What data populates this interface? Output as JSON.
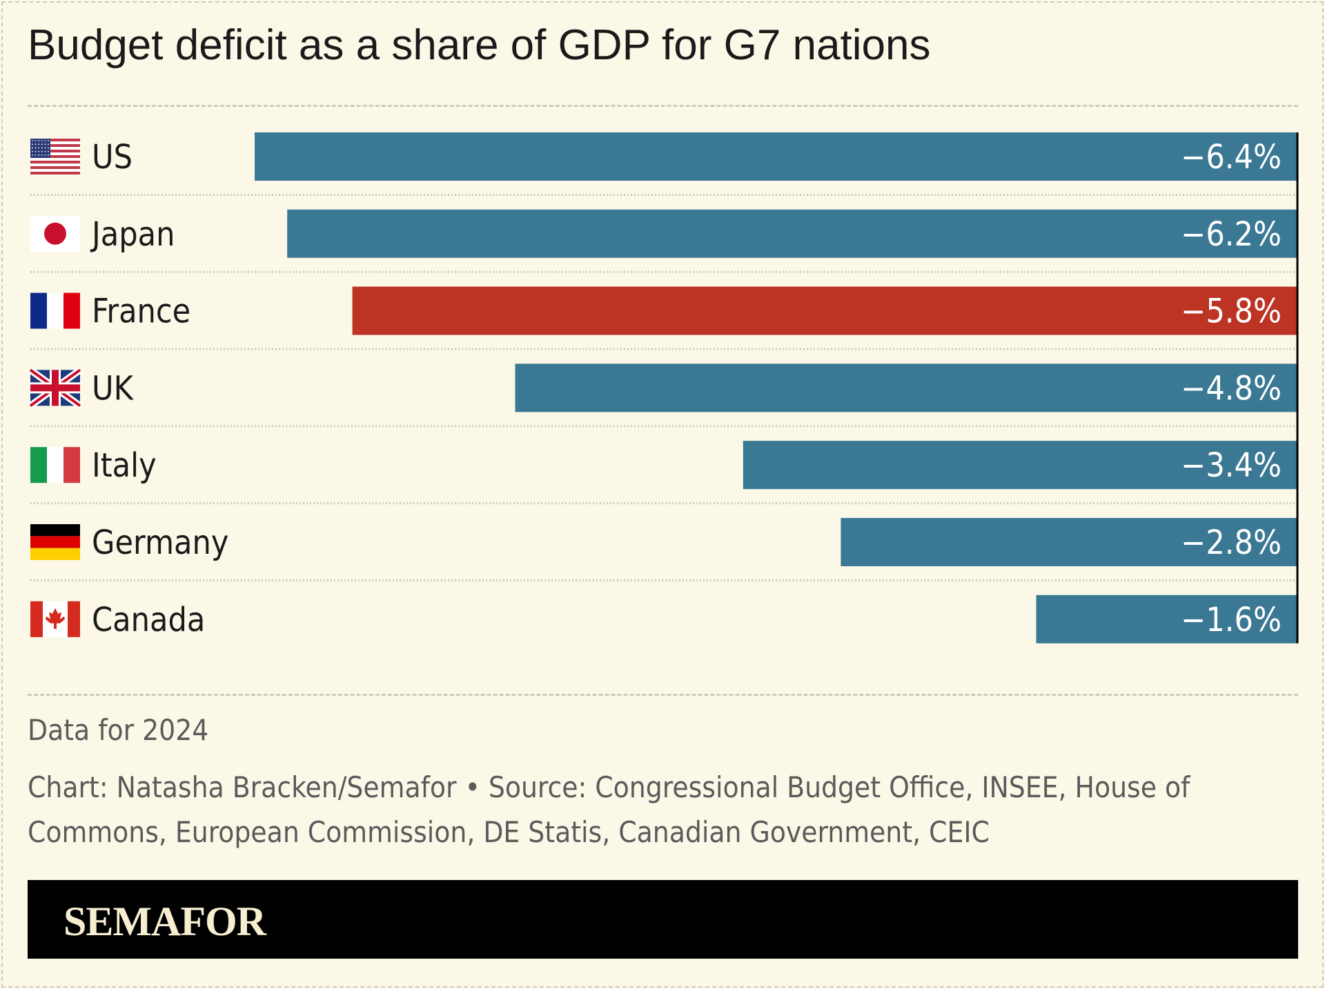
{
  "chart_data": {
    "type": "bar",
    "orientation": "horizontal",
    "title": "Budget deficit as a share of GDP for G7 nations",
    "categories": [
      "US",
      "Japan",
      "France",
      "UK",
      "Italy",
      "Germany",
      "Canada"
    ],
    "values": [
      -6.4,
      -6.2,
      -5.8,
      -4.8,
      -3.4,
      -2.8,
      -1.6
    ],
    "data_labels": [
      "−6.4%",
      "−6.2%",
      "−5.8%",
      "−4.8%",
      "−3.4%",
      "−2.8%",
      "−1.6%"
    ],
    "flags": [
      "us-flag",
      "japan-flag",
      "france-flag",
      "uk-flag",
      "italy-flag",
      "germany-flag",
      "canada-flag"
    ],
    "highlight": "France",
    "colors": {
      "default": "#3a7893",
      "highlight": "#bd3324"
    },
    "xlim": [
      -6.4,
      0
    ],
    "grid": false
  },
  "notes": {
    "data_year": "Data for 2024",
    "source_line1": "Chart: Natasha Bracken/Semafor • Source: Congressional Budget Office, INSEE, House of",
    "source_line2": "Commons, European Commission, DE Statis, Canadian Government, CEIC"
  },
  "footer": {
    "logo": "SEMAFOR"
  }
}
